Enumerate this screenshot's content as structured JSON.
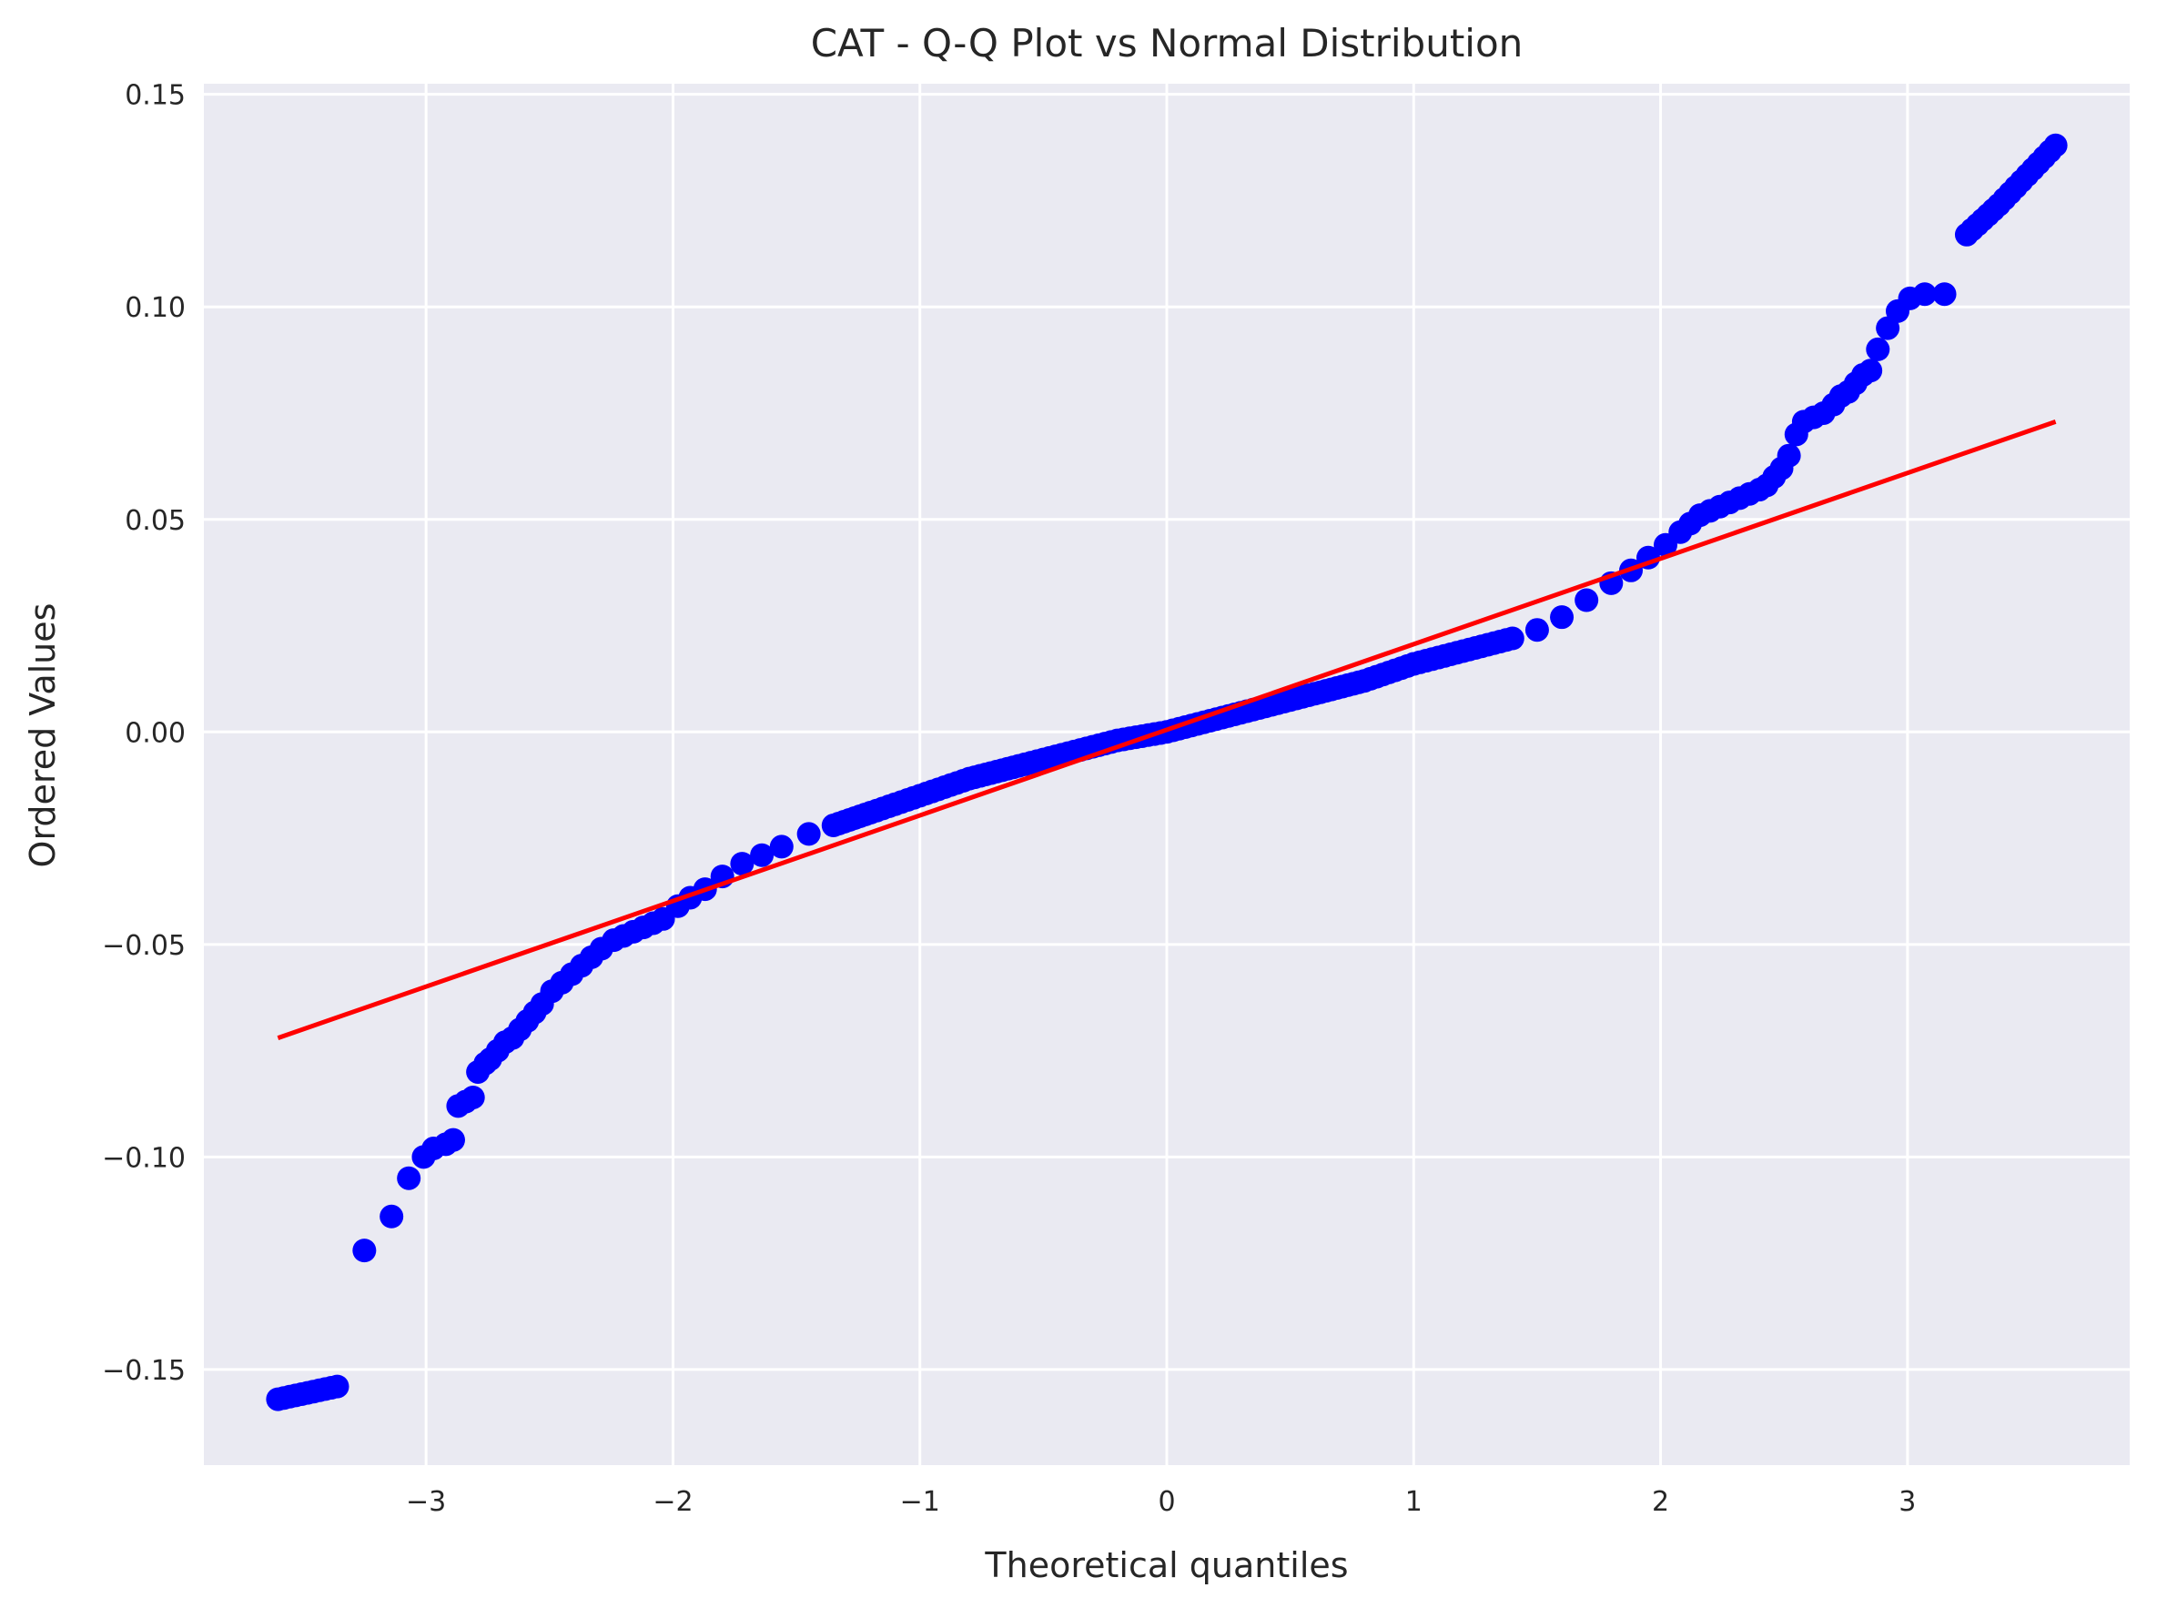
{
  "chart_data": {
    "type": "scatter",
    "title": "CAT - Q-Q Plot vs Normal Distribution",
    "xlabel": "Theoretical quantiles",
    "ylabel": "Ordered Values",
    "xlim": [
      -3.9,
      3.9
    ],
    "ylim": [
      -0.1725,
      0.1525
    ],
    "xticks": [
      -3,
      -2,
      -1,
      0,
      1,
      2,
      3
    ],
    "xtick_labels": [
      "−3",
      "−2",
      "−1",
      "0",
      "1",
      "2",
      "3"
    ],
    "yticks": [
      -0.15,
      -0.1,
      -0.05,
      0.0,
      0.05,
      0.1,
      0.15
    ],
    "ytick_labels": [
      "−0.15",
      "−0.10",
      "−0.05",
      "0.00",
      "0.05",
      "0.10",
      "0.15"
    ],
    "grid": true,
    "background": "#eaeaf2",
    "gridColor": "#ffffff",
    "pointColor": "#0000ff",
    "lineColor": "#ff0000",
    "fit_line": {
      "x": [
        -3.6,
        3.6
      ],
      "y": [
        -0.072,
        0.073
      ]
    },
    "series": [
      {
        "x": [
          -3.6,
          -3.36,
          -3.25,
          -3.14,
          -3.07,
          -3.01,
          -2.97,
          -2.92,
          -2.89,
          -2.87,
          -2.84,
          -2.81,
          -2.79,
          -2.76,
          -2.74,
          -2.71,
          -2.68,
          -2.65,
          -2.62,
          -2.59,
          -2.56,
          -2.53,
          -2.49,
          -2.45,
          -2.41,
          -2.37,
          -2.33,
          -2.29,
          -2.24,
          -2.2,
          -2.16,
          -2.12,
          -2.08,
          -2.04,
          -1.98,
          -1.93,
          -1.87,
          -1.8,
          -1.72,
          -1.64,
          -1.56,
          -1.45,
          -1.35,
          -1.2,
          -1.0,
          -0.8,
          -0.6,
          -0.4,
          -0.2,
          0.0,
          0.2,
          0.4,
          0.6,
          0.8,
          1.0,
          1.2,
          1.4,
          1.5,
          1.6,
          1.7,
          1.8,
          1.88,
          1.95,
          2.02,
          2.08,
          2.12,
          2.16,
          2.2,
          2.24,
          2.28,
          2.32,
          2.36,
          2.4,
          2.43,
          2.46,
          2.49,
          2.52,
          2.55,
          2.58,
          2.62,
          2.66,
          2.7,
          2.73,
          2.76,
          2.79,
          2.82,
          2.85,
          2.88,
          2.92,
          2.96,
          3.01,
          3.07,
          3.15,
          3.24,
          3.37,
          3.6
        ],
        "y": [
          -0.157,
          -0.154,
          -0.122,
          -0.114,
          -0.105,
          -0.1,
          -0.098,
          -0.097,
          -0.096,
          -0.088,
          -0.087,
          -0.086,
          -0.08,
          -0.078,
          -0.077,
          -0.075,
          -0.073,
          -0.072,
          -0.07,
          -0.068,
          -0.066,
          -0.064,
          -0.061,
          -0.059,
          -0.057,
          -0.055,
          -0.053,
          -0.051,
          -0.049,
          -0.048,
          -0.047,
          -0.046,
          -0.045,
          -0.044,
          -0.041,
          -0.039,
          -0.037,
          -0.034,
          -0.031,
          -0.029,
          -0.027,
          -0.024,
          -0.022,
          -0.019,
          -0.015,
          -0.011,
          -0.008,
          -0.005,
          -0.002,
          0.0,
          0.003,
          0.006,
          0.009,
          0.012,
          0.016,
          0.019,
          0.022,
          0.024,
          0.027,
          0.031,
          0.035,
          0.038,
          0.041,
          0.044,
          0.047,
          0.049,
          0.051,
          0.052,
          0.053,
          0.054,
          0.055,
          0.056,
          0.057,
          0.058,
          0.06,
          0.062,
          0.065,
          0.07,
          0.073,
          0.074,
          0.075,
          0.077,
          0.079,
          0.08,
          0.082,
          0.084,
          0.085,
          0.09,
          0.095,
          0.099,
          0.102,
          0.103,
          0.103,
          0.117,
          0.124,
          0.138
        ]
      }
    ]
  }
}
